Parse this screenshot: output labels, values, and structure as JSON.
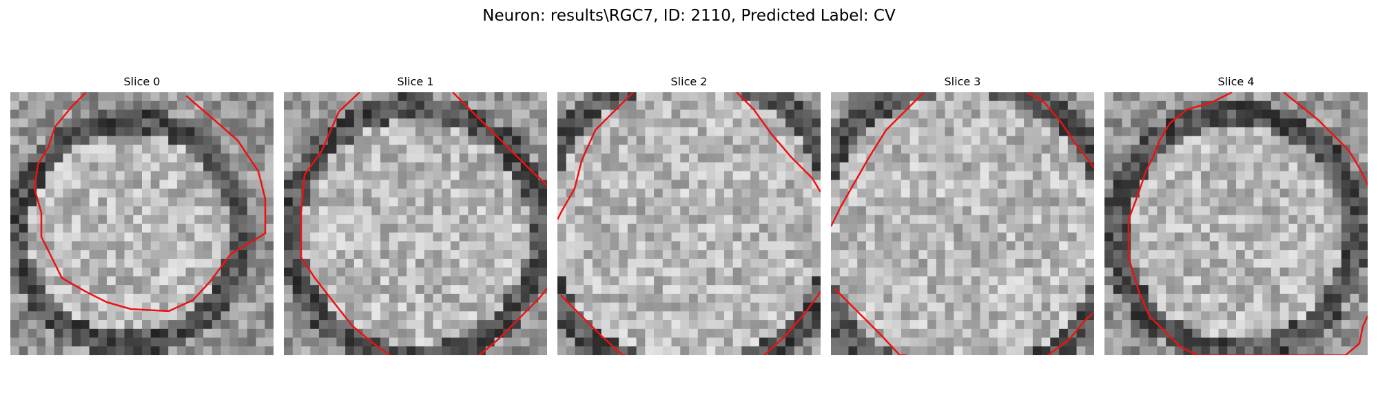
{
  "figure": {
    "suptitle": "Neuron: results\\RGC7, ID: 2110, Predicted Label: CV"
  },
  "panels": [
    {
      "title": "Slice 0"
    },
    {
      "title": "Slice 1"
    },
    {
      "title": "Slice 2"
    },
    {
      "title": "Slice 3"
    },
    {
      "title": "Slice 4"
    }
  ],
  "colors": {
    "contour": "#ee1111",
    "colormap": "grayscale"
  }
}
